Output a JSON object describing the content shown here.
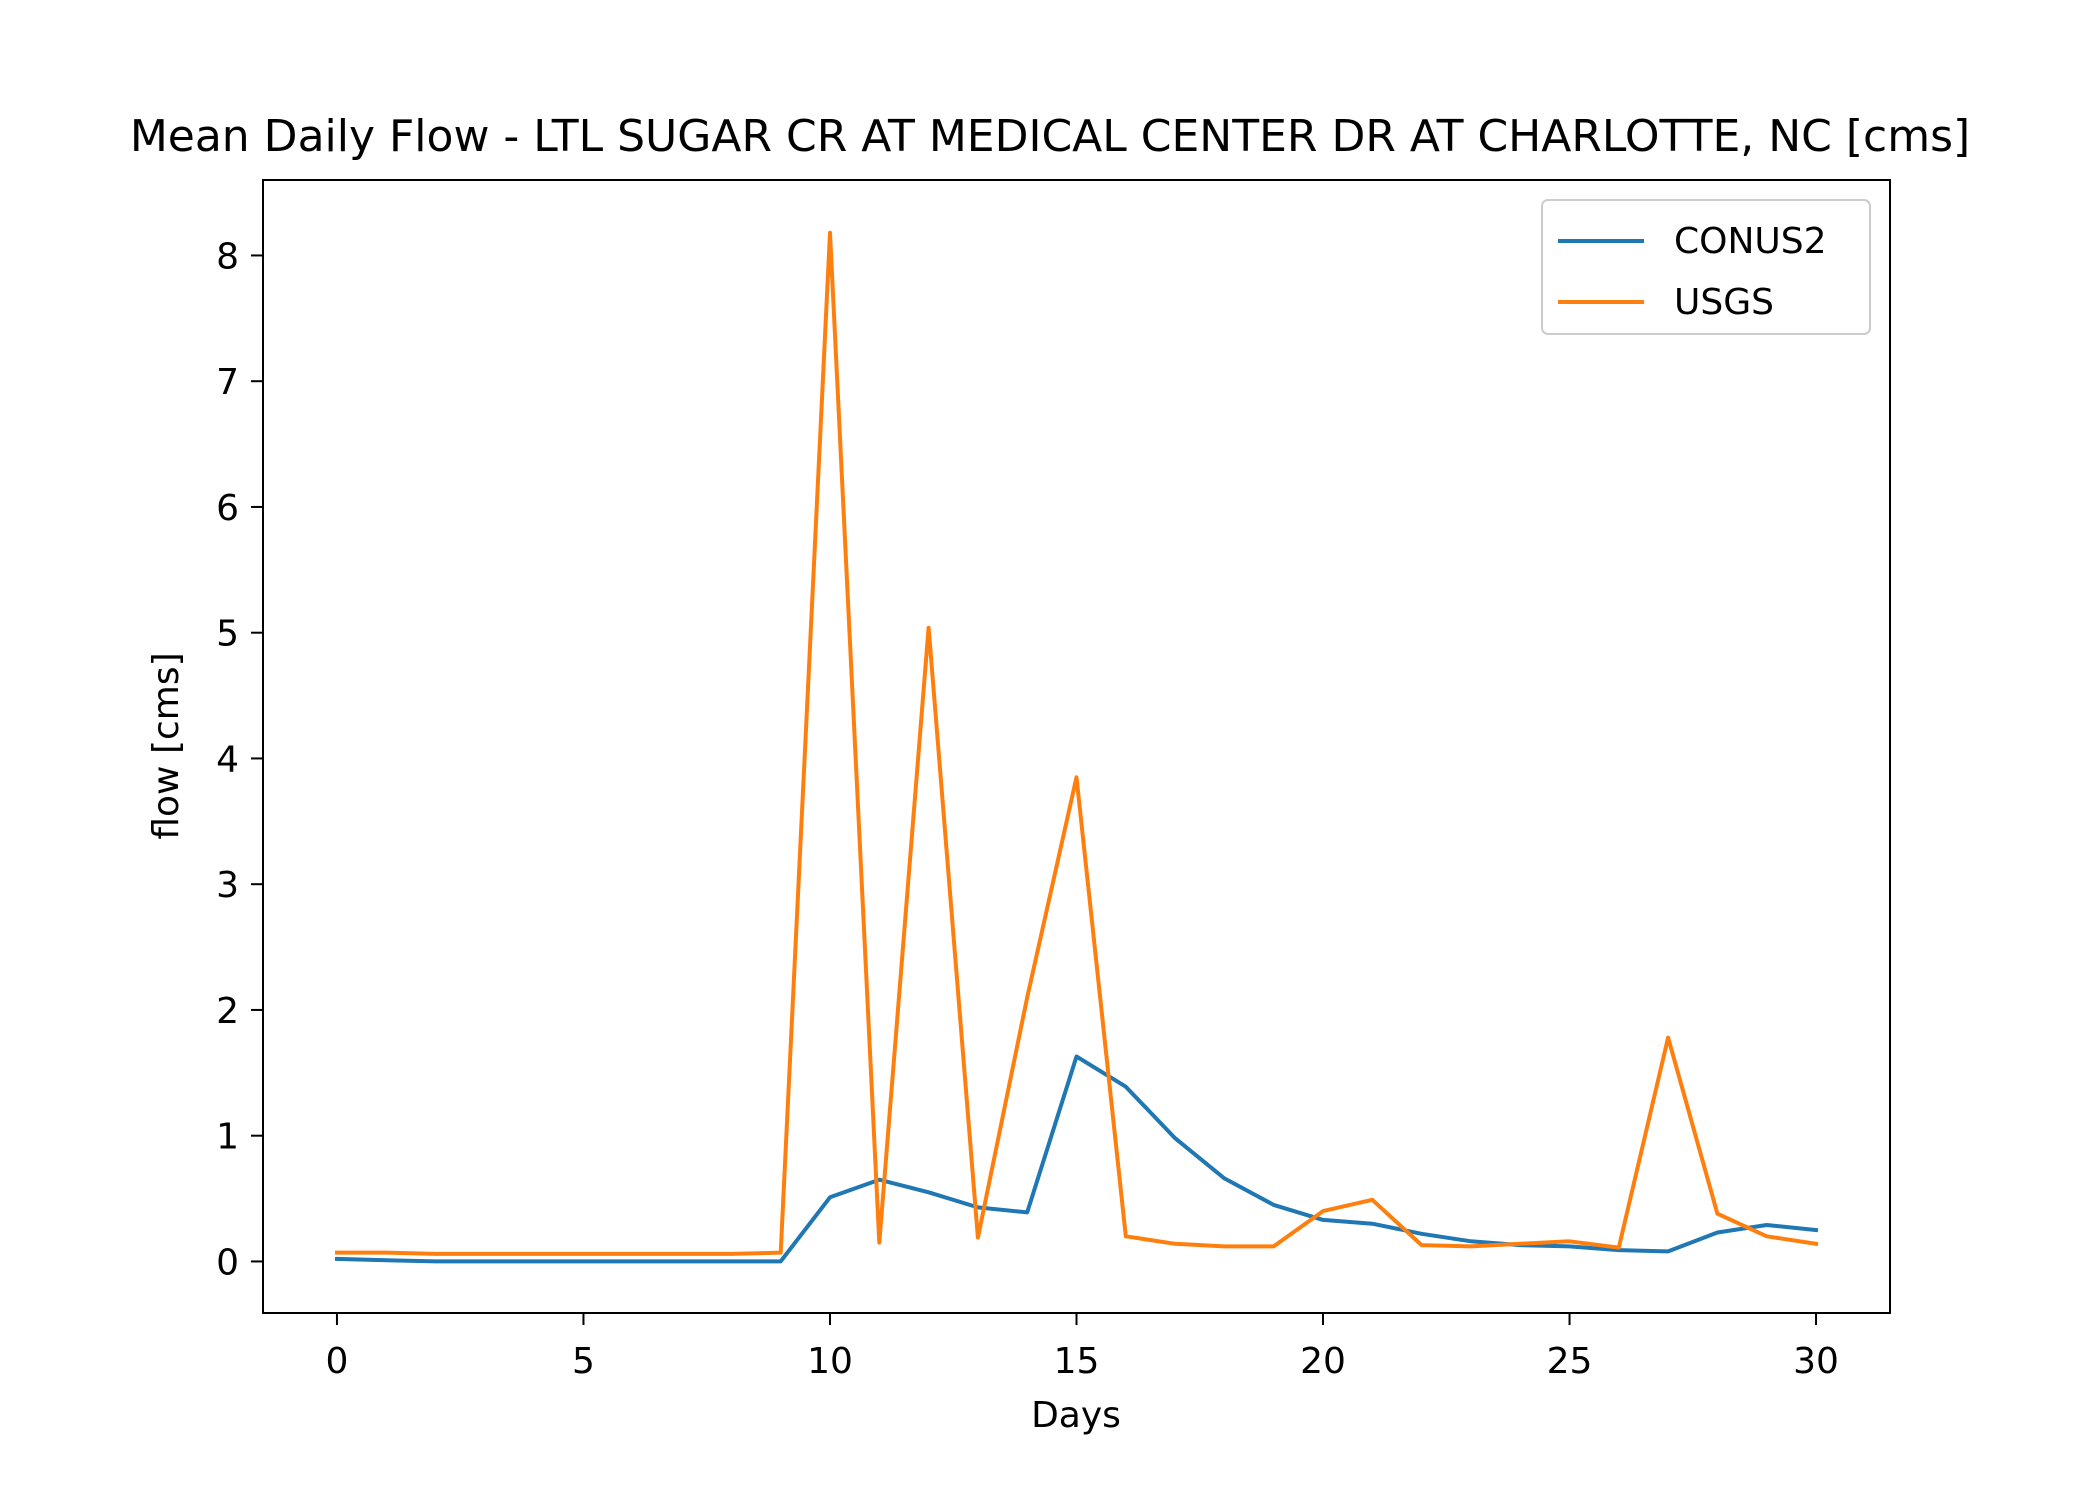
{
  "chart_data": {
    "type": "line",
    "title": "Mean Daily Flow - LTL SUGAR CR AT MEDICAL CENTER DR AT CHARLOTTE, NC [cms]",
    "xlabel": "Days",
    "ylabel": "flow [cms]",
    "xlim": [
      -1.5,
      31.5
    ],
    "ylim": [
      -0.41,
      8.6
    ],
    "xticks": [
      0,
      5,
      10,
      15,
      20,
      25,
      30
    ],
    "yticks": [
      0,
      1,
      2,
      3,
      4,
      5,
      6,
      7,
      8
    ],
    "grid": false,
    "legend": "top-right",
    "x": [
      0,
      1,
      2,
      3,
      4,
      5,
      6,
      7,
      8,
      9,
      10,
      11,
      12,
      13,
      14,
      15,
      16,
      17,
      18,
      19,
      20,
      21,
      22,
      23,
      24,
      25,
      26,
      27,
      28,
      29,
      30
    ],
    "series": [
      {
        "name": "CONUS2",
        "color": "#1f77b4",
        "values": [
          0.02,
          0.01,
          0.0,
          0.0,
          0.0,
          0.0,
          0.0,
          0.0,
          0.0,
          0.0,
          0.51,
          0.65,
          0.55,
          0.43,
          0.39,
          1.63,
          1.39,
          0.98,
          0.66,
          0.45,
          0.33,
          0.3,
          0.22,
          0.16,
          0.13,
          0.12,
          0.09,
          0.08,
          0.23,
          0.29,
          0.25
        ]
      },
      {
        "name": "USGS",
        "color": "#ff7f0e",
        "values": [
          0.07,
          0.07,
          0.06,
          0.06,
          0.06,
          0.06,
          0.06,
          0.06,
          0.06,
          0.07,
          8.18,
          0.15,
          5.04,
          0.19,
          2.1,
          3.85,
          0.2,
          0.14,
          0.12,
          0.12,
          0.4,
          0.49,
          0.13,
          0.12,
          0.14,
          0.16,
          0.11,
          1.78,
          0.38,
          0.2,
          0.14
        ]
      }
    ]
  }
}
